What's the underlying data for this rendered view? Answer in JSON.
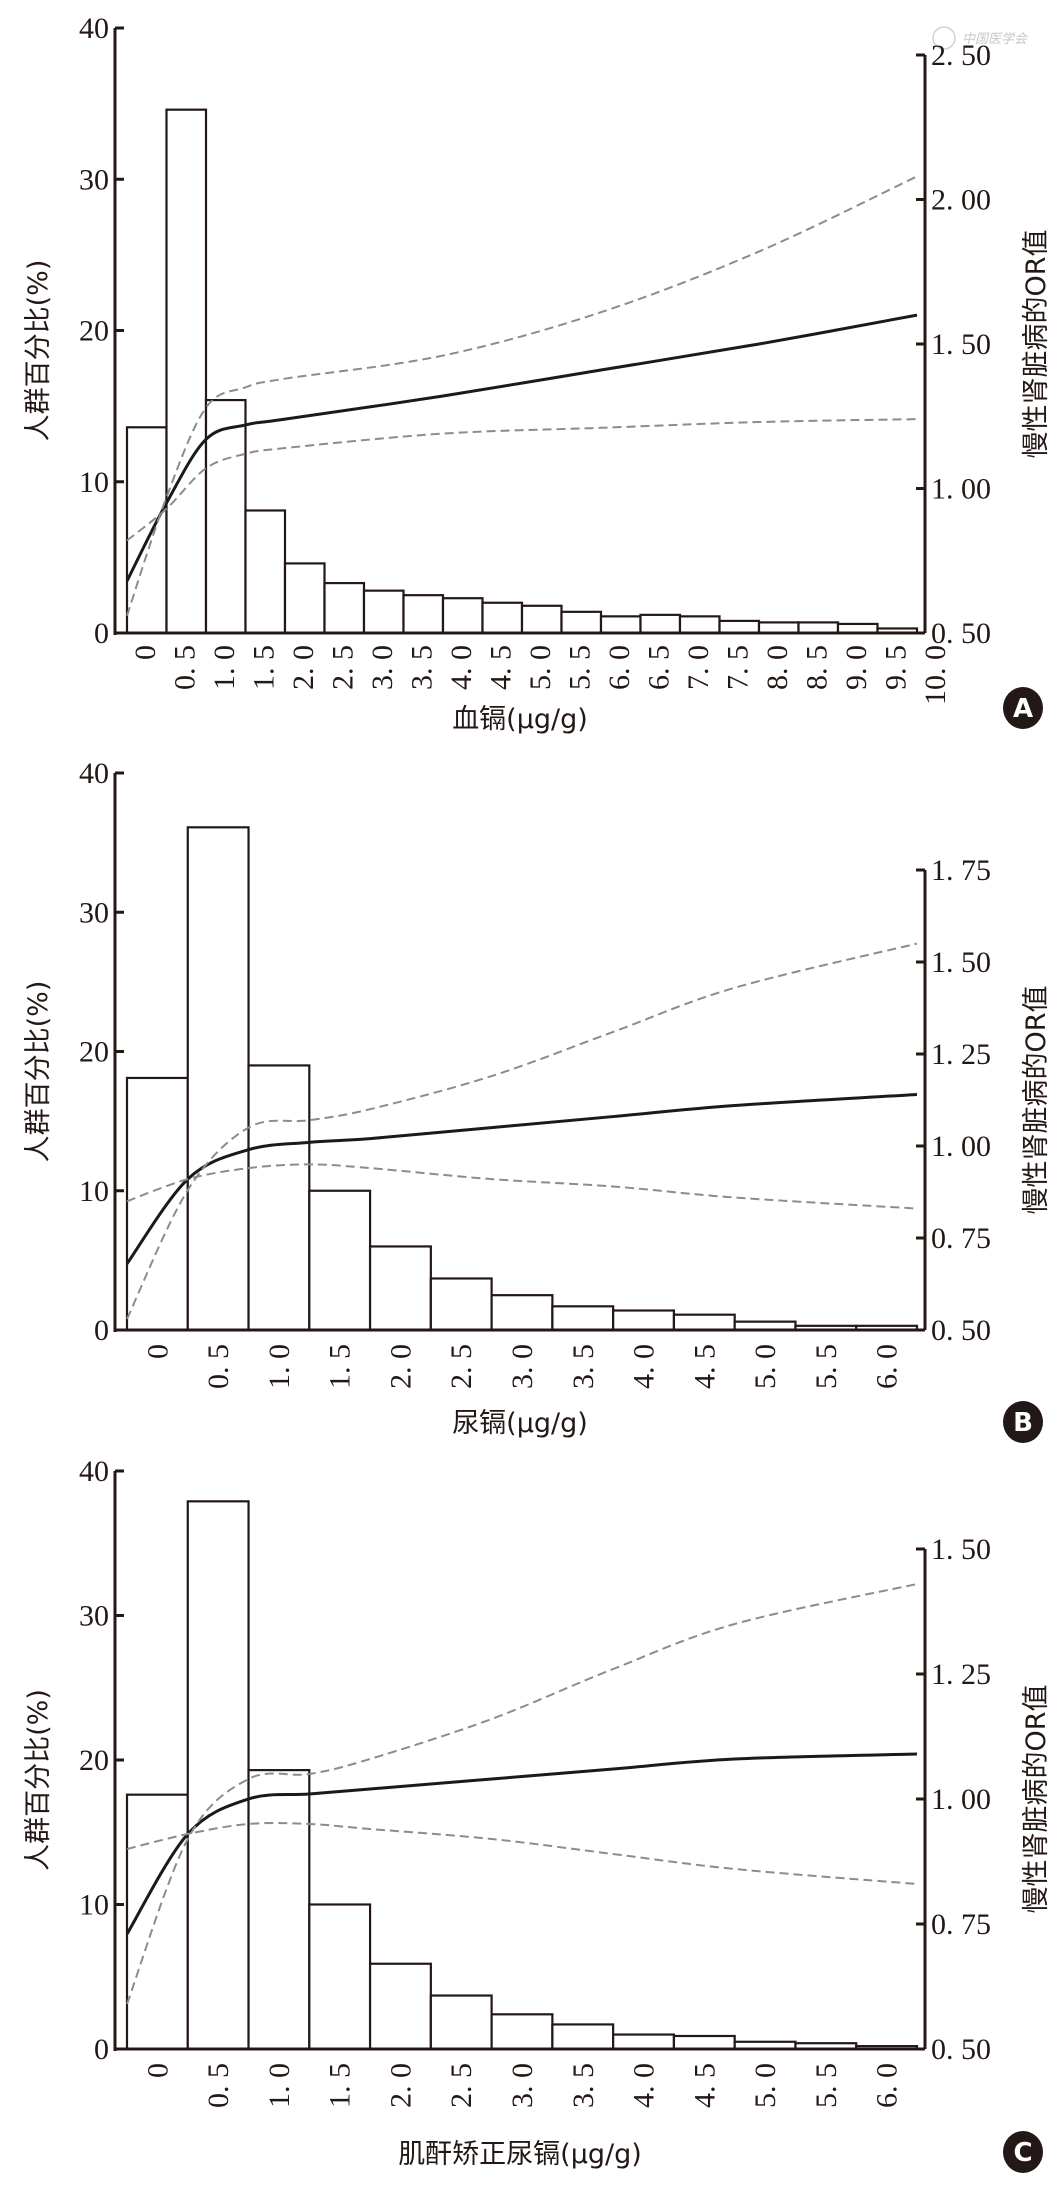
{
  "watermark": "中国医学会",
  "colors": {
    "axis": "#231815",
    "bar_fill": "#ffffff",
    "bar_stroke": "#231815",
    "or_line": "#1a1a1a",
    "ci_line": "#8c8c8c",
    "badge": "#231815"
  },
  "chart_data": [
    {
      "panel": "A",
      "type": "bar+line",
      "title": "",
      "xlabel": "血镉(μg/g)",
      "ylabel": "人群百分比(%)",
      "y2label": "慢性肾脏病的OR值",
      "ylim": [
        0,
        40
      ],
      "yticks": [
        0,
        10,
        20,
        30,
        40
      ],
      "y2lim": [
        0.5,
        2.5
      ],
      "y2ticks": [
        "0.50",
        "1.00",
        "1.50",
        "2.00",
        "2.50"
      ],
      "xlim": [
        0,
        10.0
      ],
      "bin_width": 0.5,
      "categories": [
        "0",
        "0.5",
        "1.0",
        "1.5",
        "2.0",
        "2.5",
        "3.0",
        "3.5",
        "4.0",
        "4.5",
        "5.0",
        "5.5",
        "6.0",
        "6.5",
        "7.0",
        "7.5",
        "8.0",
        "8.5",
        "9.0",
        "9.5",
        "10.0"
      ],
      "bar_values": [
        13.6,
        34.6,
        15.4,
        8.1,
        4.6,
        3.3,
        2.8,
        2.5,
        2.3,
        2.0,
        1.8,
        1.4,
        1.1,
        1.2,
        1.1,
        0.8,
        0.7,
        0.7,
        0.6,
        0.3
      ],
      "curve_x": [
        0,
        0.5,
        1.0,
        1.5,
        2.0,
        4.0,
        6.0,
        8.0,
        10.0
      ],
      "series": [
        {
          "name": "OR",
          "style": "solid",
          "values": [
            0.68,
            0.95,
            1.17,
            1.22,
            1.24,
            1.32,
            1.41,
            1.5,
            1.6
          ]
        },
        {
          "name": "95% CI upper",
          "style": "dashed",
          "values": [
            0.56,
            0.97,
            1.28,
            1.35,
            1.38,
            1.46,
            1.61,
            1.82,
            2.08
          ]
        },
        {
          "name": "95% CI lower",
          "style": "dashed",
          "values": [
            0.82,
            0.93,
            1.07,
            1.12,
            1.14,
            1.19,
            1.21,
            1.23,
            1.24
          ]
        }
      ],
      "badge": "A"
    },
    {
      "panel": "B",
      "type": "bar+line",
      "title": "",
      "xlabel": "尿镉(μg/g)",
      "ylabel": "人群百分比(%)",
      "y2label": "慢性肾脏病的OR值",
      "ylim": [
        0,
        40
      ],
      "yticks": [
        0,
        10,
        20,
        30,
        40
      ],
      "y2lim": [
        0.5,
        1.75
      ],
      "y2ticks": [
        "0.50",
        "0.75",
        "1.00",
        "1.25",
        "1.50",
        "1.75"
      ],
      "xlim": [
        0,
        6.5
      ],
      "bin_width": 0.5,
      "categories": [
        "0",
        "0.5",
        "1.0",
        "1.5",
        "2.0",
        "2.5",
        "3.0",
        "3.5",
        "4.0",
        "4.5",
        "5.0",
        "5.5",
        "6.0"
      ],
      "bar_values": [
        18.1,
        36.1,
        19.0,
        10.0,
        6.0,
        3.7,
        2.5,
        1.7,
        1.4,
        1.1,
        0.6,
        0.3,
        0.3
      ],
      "curve_x": [
        0,
        0.5,
        1.0,
        1.5,
        2.0,
        3.0,
        4.0,
        5.0,
        6.5
      ],
      "series": [
        {
          "name": "OR",
          "style": "solid",
          "values": [
            0.68,
            0.91,
            0.99,
            1.01,
            1.02,
            1.05,
            1.08,
            1.11,
            1.14
          ]
        },
        {
          "name": "95% CI upper",
          "style": "dashed",
          "values": [
            0.53,
            0.88,
            1.05,
            1.07,
            1.1,
            1.19,
            1.31,
            1.43,
            1.55
          ]
        },
        {
          "name": "95% CI lower",
          "style": "dashed",
          "values": [
            0.85,
            0.91,
            0.94,
            0.95,
            0.94,
            0.91,
            0.89,
            0.86,
            0.83
          ]
        }
      ],
      "badge": "B"
    },
    {
      "panel": "C",
      "type": "bar+line",
      "title": "",
      "xlabel": "肌酐矫正尿镉(μg/g)",
      "ylabel": "人群百分比(%)",
      "y2label": "慢性肾脏病的OR值",
      "ylim": [
        0,
        40
      ],
      "yticks": [
        0,
        10,
        20,
        30,
        40
      ],
      "y2lim": [
        0.5,
        1.5
      ],
      "y2ticks": [
        "0.50",
        "0.75",
        "1.00",
        "1.25",
        "1.50"
      ],
      "xlim": [
        0,
        6.5
      ],
      "bin_width": 0.5,
      "categories": [
        "0",
        "0.5",
        "1.0",
        "1.5",
        "2.0",
        "2.5",
        "3.0",
        "3.5",
        "4.0",
        "4.5",
        "5.0",
        "5.5",
        "6.0"
      ],
      "bar_values": [
        17.6,
        37.9,
        19.3,
        10.0,
        5.9,
        3.7,
        2.4,
        1.7,
        1.0,
        0.9,
        0.5,
        0.4,
        0.2
      ],
      "curve_x": [
        0,
        0.5,
        1.0,
        1.5,
        2.0,
        3.0,
        4.0,
        5.0,
        6.5
      ],
      "series": [
        {
          "name": "OR",
          "style": "solid",
          "values": [
            0.73,
            0.93,
            1.0,
            1.01,
            1.02,
            1.04,
            1.06,
            1.08,
            1.09
          ]
        },
        {
          "name": "95% CI upper",
          "style": "dashed",
          "values": [
            0.59,
            0.92,
            1.04,
            1.05,
            1.08,
            1.16,
            1.26,
            1.35,
            1.43
          ]
        },
        {
          "name": "95% CI lower",
          "style": "dashed",
          "values": [
            0.9,
            0.93,
            0.95,
            0.95,
            0.94,
            0.92,
            0.89,
            0.86,
            0.83
          ]
        }
      ],
      "badge": "C"
    }
  ]
}
